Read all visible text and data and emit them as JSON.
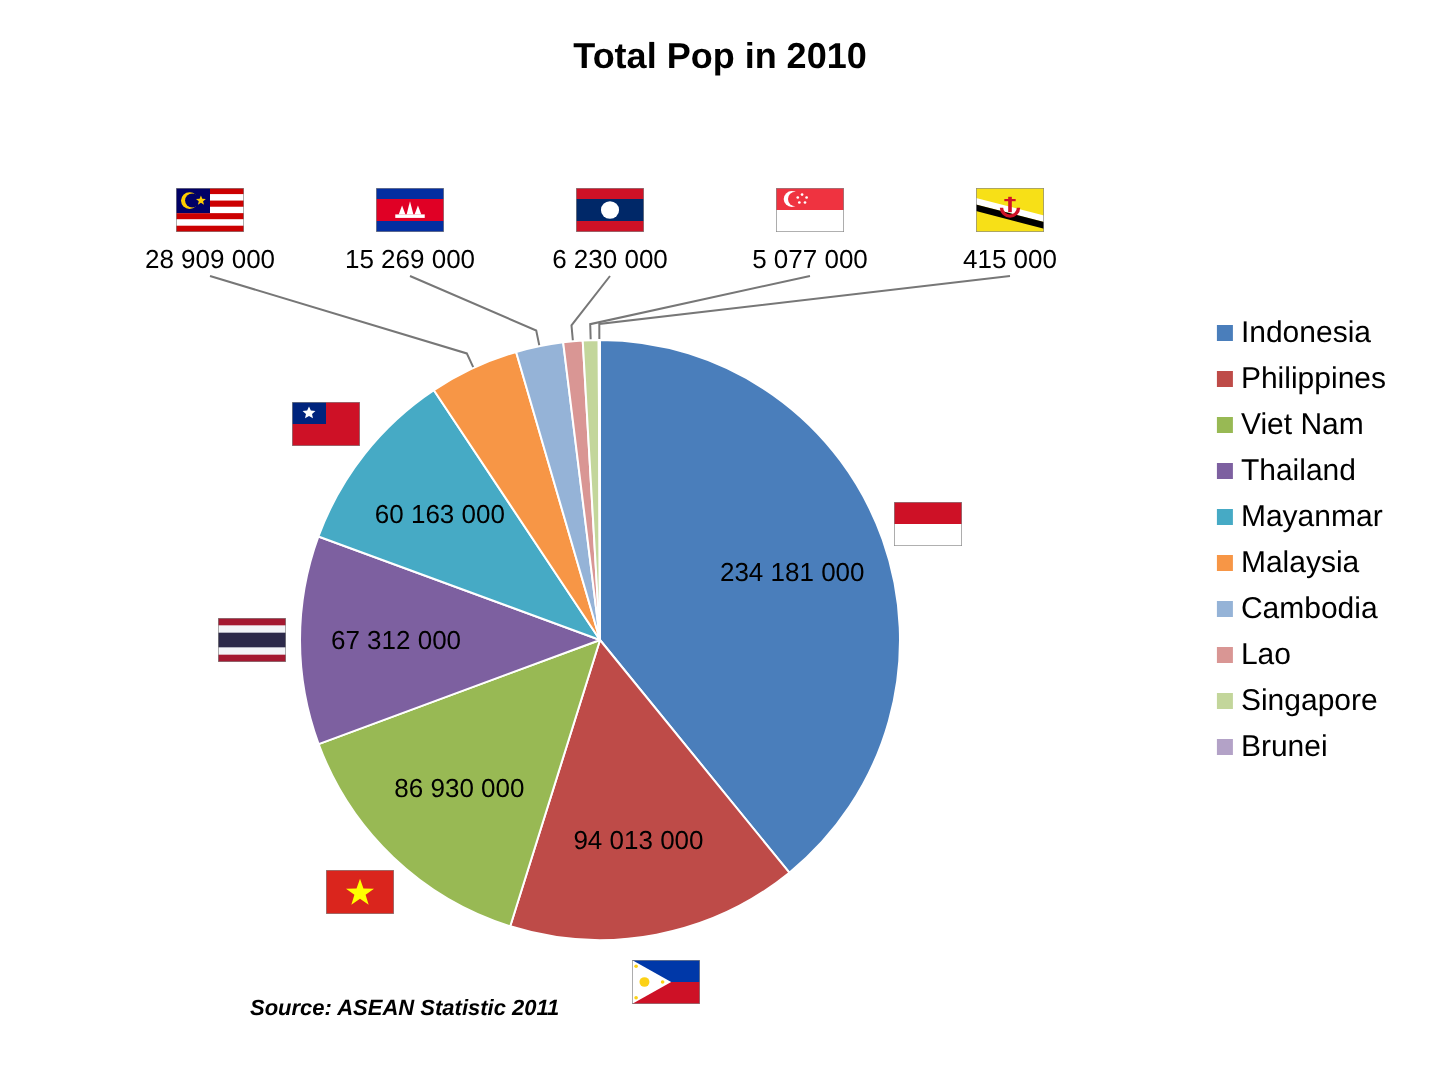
{
  "chart_data": {
    "type": "pie",
    "title": "Total Pop in 2010",
    "categories": [
      "Indonesia",
      "Philippines",
      "Viet Nam",
      "Thailand",
      "Mayanmar",
      "Malaysia",
      "Cambodia",
      "Lao",
      "Singapore",
      "Brunei"
    ],
    "values": [
      234181000,
      94013000,
      86930000,
      67312000,
      60163000,
      28909000,
      15269000,
      6230000,
      5077000,
      415000
    ],
    "colors": [
      "#4a7ebb",
      "#be4b48",
      "#98b954",
      "#7d60a0",
      "#46aac5",
      "#f79646",
      "#95b3d7",
      "#d99694",
      "#c3d69b",
      "#b3a2c7"
    ],
    "value_labels": [
      "234 181 000",
      "94 013 000",
      "86 930 000",
      "67 312 000",
      "60 163 000",
      "28 909 000",
      "15 269 000",
      "6 230 000",
      "5 077 000",
      "415 000"
    ],
    "legend": "right",
    "annotations": [
      "Source: ASEAN Statistic 2011"
    ]
  }
}
